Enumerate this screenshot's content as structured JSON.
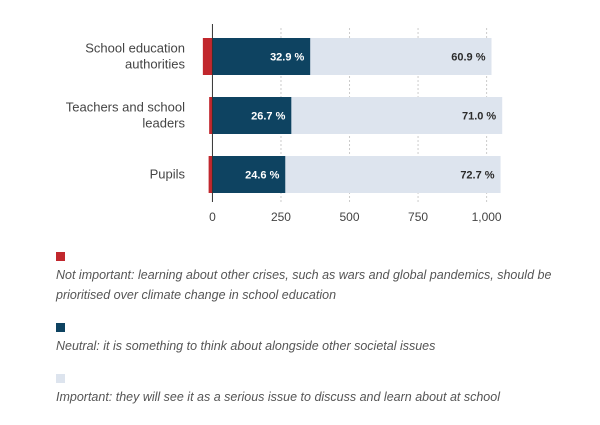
{
  "chart_data": {
    "type": "bar",
    "orientation": "horizontal",
    "stacked": true,
    "categories": [
      [
        "School education",
        "authorities"
      ],
      [
        "Teachers and school",
        "leaders"
      ],
      [
        "Pupils"
      ]
    ],
    "series": [
      {
        "name": "Not important",
        "color": "#c1272d",
        "values": [
          -35,
          -12,
          -14
        ],
        "labels": [
          "",
          "",
          ""
        ],
        "label_color": "#ffffff"
      },
      {
        "name": "Neutral",
        "color": "#0e4361",
        "values": [
          357,
          288,
          266
        ],
        "labels": [
          "32.9 %",
          "26.7 %",
          "24.6 %"
        ],
        "label_color": "#ffffff"
      },
      {
        "name": "Important",
        "color": "#dde4ee",
        "values": [
          661,
          769,
          785
        ],
        "labels": [
          "60.9 %",
          "71.0 %",
          "72.7 %"
        ],
        "label_color": "#2b2b2b"
      }
    ],
    "xlim": [
      -60,
      1100
    ],
    "xticks": [
      0,
      250,
      500,
      750,
      1000
    ],
    "xtick_labels": [
      "0",
      "250",
      "500",
      "750",
      "1,000"
    ],
    "grid": true,
    "legend_position": "bottom",
    "title": "",
    "xlabel": "",
    "ylabel": ""
  },
  "legend": [
    {
      "color": "#c1272d",
      "text": "Not important: learning about other crises, such as wars and global pandemics, should be prioritised over climate change in school education"
    },
    {
      "color": "#0e4361",
      "text": "Neutral: it is something to think about alongside other societal issues"
    },
    {
      "color": "#dde4ee",
      "text": "Important: they will see it as a serious issue to discuss and learn about at school"
    }
  ]
}
